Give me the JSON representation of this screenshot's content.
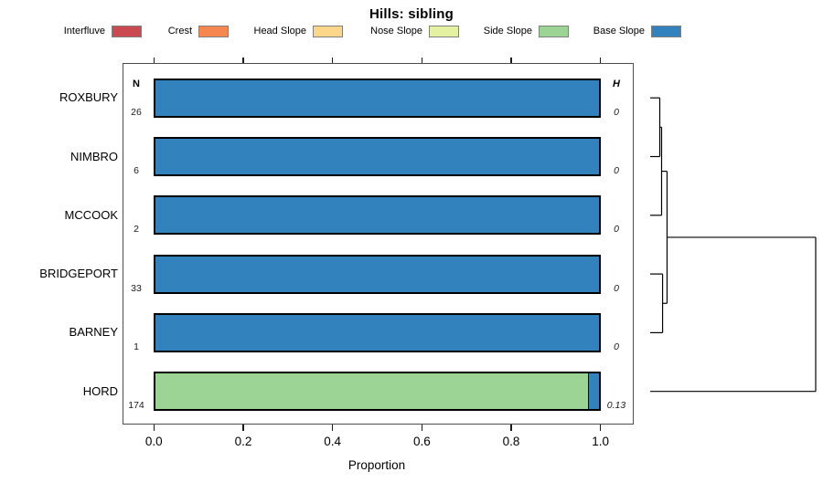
{
  "chart_data": {
    "type": "bar",
    "orientation": "horizontal",
    "stacked": true,
    "title": "Hills: sibling",
    "xlabel": "Proportion",
    "xlim": [
      0,
      1
    ],
    "x_ticks": [
      "0.0",
      "0.2",
      "0.4",
      "0.6",
      "0.8",
      "1.0"
    ],
    "grid": false,
    "legend_position": "top",
    "categories": [
      "ROXBURY",
      "NIMBRO",
      "MCCOOK",
      "BRIDGEPORT",
      "BARNEY",
      "HORD"
    ],
    "series": [
      {
        "name": "Interfluve",
        "color": "#cb4a52",
        "values": [
          0,
          0,
          0,
          0,
          0,
          0
        ]
      },
      {
        "name": "Crest",
        "color": "#f6874e",
        "values": [
          0,
          0,
          0,
          0,
          0,
          0
        ]
      },
      {
        "name": "Head Slope",
        "color": "#fcd78a",
        "values": [
          0,
          0,
          0,
          0,
          0,
          0
        ]
      },
      {
        "name": "Nose Slope",
        "color": "#e4f1a1",
        "values": [
          0,
          0,
          0,
          0,
          0,
          0
        ]
      },
      {
        "name": "Side Slope",
        "color": "#9bd494",
        "values": [
          0,
          0,
          0,
          0,
          0,
          0.975
        ]
      },
      {
        "name": "Base Slope",
        "color": "#3182bd",
        "values": [
          1,
          1,
          1,
          1,
          1,
          0.025
        ]
      }
    ],
    "row_annotations": {
      "n_header": "N",
      "h_header": "H",
      "N": [
        "26",
        "6",
        "2",
        "33",
        "1",
        "174"
      ],
      "H": [
        "0",
        "0",
        "0",
        "0",
        "0",
        "0.13"
      ]
    },
    "dendrogram": {
      "side": "right",
      "leaves": [
        "ROXBURY",
        "NIMBRO",
        "MCCOOK",
        "BRIDGEPORT",
        "BARNEY",
        "HORD"
      ],
      "merges": [
        {
          "a": "ROXBURY",
          "b": "NIMBRO",
          "h": 0.058
        },
        {
          "a": "#0",
          "b": "MCCOOK",
          "h": 0.069
        },
        {
          "a": "BRIDGEPORT",
          "b": "BARNEY",
          "h": 0.075
        },
        {
          "a": "#1",
          "b": "#2",
          "h": 0.102
        },
        {
          "a": "#3",
          "b": "HORD",
          "h": 1.0
        }
      ]
    }
  }
}
